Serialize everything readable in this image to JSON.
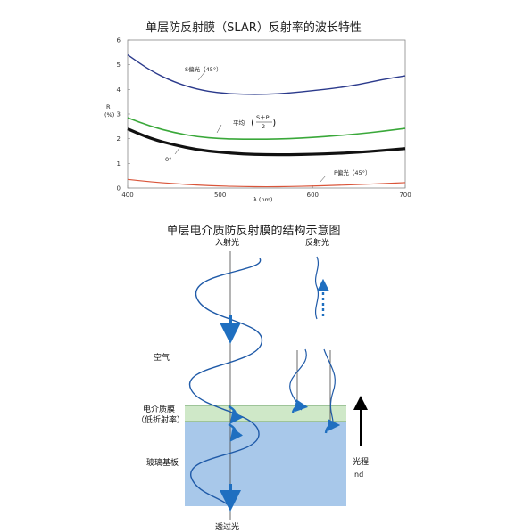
{
  "chart_title": "单层防反射膜（SLAR）反射率的波长特性",
  "diagram_title": "单层电介质防反射膜的结构示意图",
  "chart_data": {
    "type": "line",
    "xlabel": "λ (nm)",
    "ylabel": "R\n(%)",
    "xlim": [
      400,
      700
    ],
    "ylim": [
      0,
      6
    ],
    "xticks": [
      "400",
      "500",
      "600",
      "700"
    ],
    "yticks": [
      "0",
      "1",
      "2",
      "3",
      "4",
      "5",
      "6"
    ],
    "x": [
      400,
      425,
      450,
      475,
      500,
      525,
      550,
      575,
      600,
      625,
      650,
      675,
      700
    ],
    "series": [
      {
        "name": "S偏光（45°）",
        "color": "#2b3a8c",
        "values": [
          5.4,
          4.75,
          4.3,
          4.0,
          3.85,
          3.8,
          3.8,
          3.85,
          3.95,
          4.05,
          4.2,
          4.4,
          4.55
        ]
      },
      {
        "name": "平均",
        "color": "#3aa83a",
        "values": [
          2.85,
          2.5,
          2.25,
          2.08,
          2.0,
          1.98,
          1.98,
          2.0,
          2.05,
          2.12,
          2.2,
          2.3,
          2.42
        ]
      },
      {
        "name": "0°",
        "color": "#111111",
        "values": [
          2.4,
          2.0,
          1.75,
          1.55,
          1.45,
          1.38,
          1.35,
          1.35,
          1.37,
          1.4,
          1.45,
          1.52,
          1.6
        ]
      },
      {
        "name": "P偏光（45°）",
        "color": "#d9553a",
        "values": [
          0.35,
          0.25,
          0.18,
          0.12,
          0.08,
          0.06,
          0.05,
          0.06,
          0.08,
          0.11,
          0.14,
          0.18,
          0.22
        ]
      }
    ],
    "annotations": {
      "s_label": "S偏光（45°）",
      "avg_label": "平均",
      "avg_num": "S＋P",
      "avg_den": "2",
      "zero_label": "0°",
      "p_label": "P偏光（45°）"
    }
  },
  "diagram": {
    "incident": "入射光",
    "reflected": "反射光",
    "air": "空气",
    "film_line1": "电介质膜",
    "film_line2": "（低折射率）",
    "substrate": "玻璃基板",
    "transmitted": "透过光",
    "path_line1": "光程",
    "path_line2": "nd",
    "colors": {
      "wave": "#1f5aa8",
      "arrow": "#1f6fc0",
      "film": "#cfe8c8",
      "substrate": "#a8c8ea"
    }
  }
}
